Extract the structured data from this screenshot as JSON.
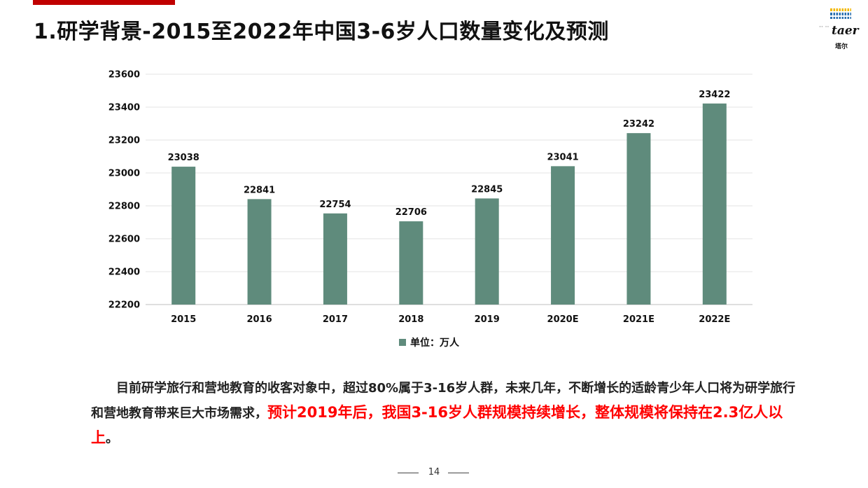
{
  "page": {
    "title": "1.研学背景-2015至2022年中国3-6岁人口数量变化及预测",
    "page_number": "14",
    "accent_color": "#c00000",
    "highlight_color": "#ff0000"
  },
  "logo": {
    "text": "taer",
    "dots": "·· ··",
    "subtext": "塔尔",
    "icon": "bar-grid-logo"
  },
  "paragraph": {
    "normal": "目前研学旅行和营地教育的收客对象中，超过80%属于3-16岁人群，未来几年，不断增长的适龄青少年人口将为研学旅行和营地教育带来巨大市场需求，",
    "highlight": "预计2019年后，我国3-16岁人群规模持续增长，整体规模将保持在2.3亿人以上",
    "end": "。"
  },
  "chart_data": {
    "type": "bar",
    "categories": [
      "2015",
      "2016",
      "2017",
      "2018",
      "2019",
      "2020E",
      "2021E",
      "2022E"
    ],
    "series": [
      {
        "name": "单位：万人",
        "values": [
          23038,
          22841,
          22754,
          22706,
          22845,
          23041,
          23242,
          23422
        ],
        "color": "#5f8b7c"
      }
    ],
    "ylim": [
      22200,
      23600
    ],
    "yticks": [
      22200,
      22400,
      22600,
      22800,
      23000,
      23200,
      23400,
      23600
    ],
    "grid": true,
    "legend": "bottom",
    "data_labels": true
  }
}
